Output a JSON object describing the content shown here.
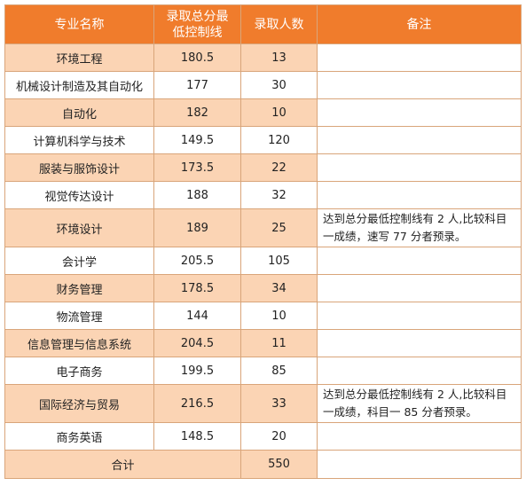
{
  "table": {
    "headers": [
      "专业名称",
      "录取总分最低控制线",
      "录取人数",
      "备注"
    ],
    "rows": [
      {
        "major": "环境工程",
        "score": "180.5",
        "count": "13",
        "note": ""
      },
      {
        "major": "机械设计制造及其自动化",
        "score": "177",
        "count": "30",
        "note": ""
      },
      {
        "major": "自动化",
        "score": "182",
        "count": "10",
        "note": ""
      },
      {
        "major": "计算机科学与技术",
        "score": "149.5",
        "count": "120",
        "note": ""
      },
      {
        "major": "服装与服饰设计",
        "score": "173.5",
        "count": "22",
        "note": ""
      },
      {
        "major": "视觉传达设计",
        "score": "188",
        "count": "32",
        "note": ""
      },
      {
        "major": "环境设计",
        "score": "189",
        "count": "25",
        "note": "达到总分最低控制线有 2 人,比较科目一成绩，速写 77 分者预录。"
      },
      {
        "major": "会计学",
        "score": "205.5",
        "count": "105",
        "note": ""
      },
      {
        "major": "财务管理",
        "score": "178.5",
        "count": "34",
        "note": ""
      },
      {
        "major": "物流管理",
        "score": "144",
        "count": "10",
        "note": ""
      },
      {
        "major": "信息管理与信息系统",
        "score": "204.5",
        "count": "11",
        "note": ""
      },
      {
        "major": "电子商务",
        "score": "199.5",
        "count": "85",
        "note": ""
      },
      {
        "major": "国际经济与贸易",
        "score": "216.5",
        "count": "33",
        "note": "达到总分最低控制线有 2 人,比较科目一成绩，科目一 85 分者预录。"
      },
      {
        "major": "商务英语",
        "score": "148.5",
        "count": "20",
        "note": ""
      }
    ],
    "total": {
      "label": "合计",
      "count": "550"
    }
  }
}
